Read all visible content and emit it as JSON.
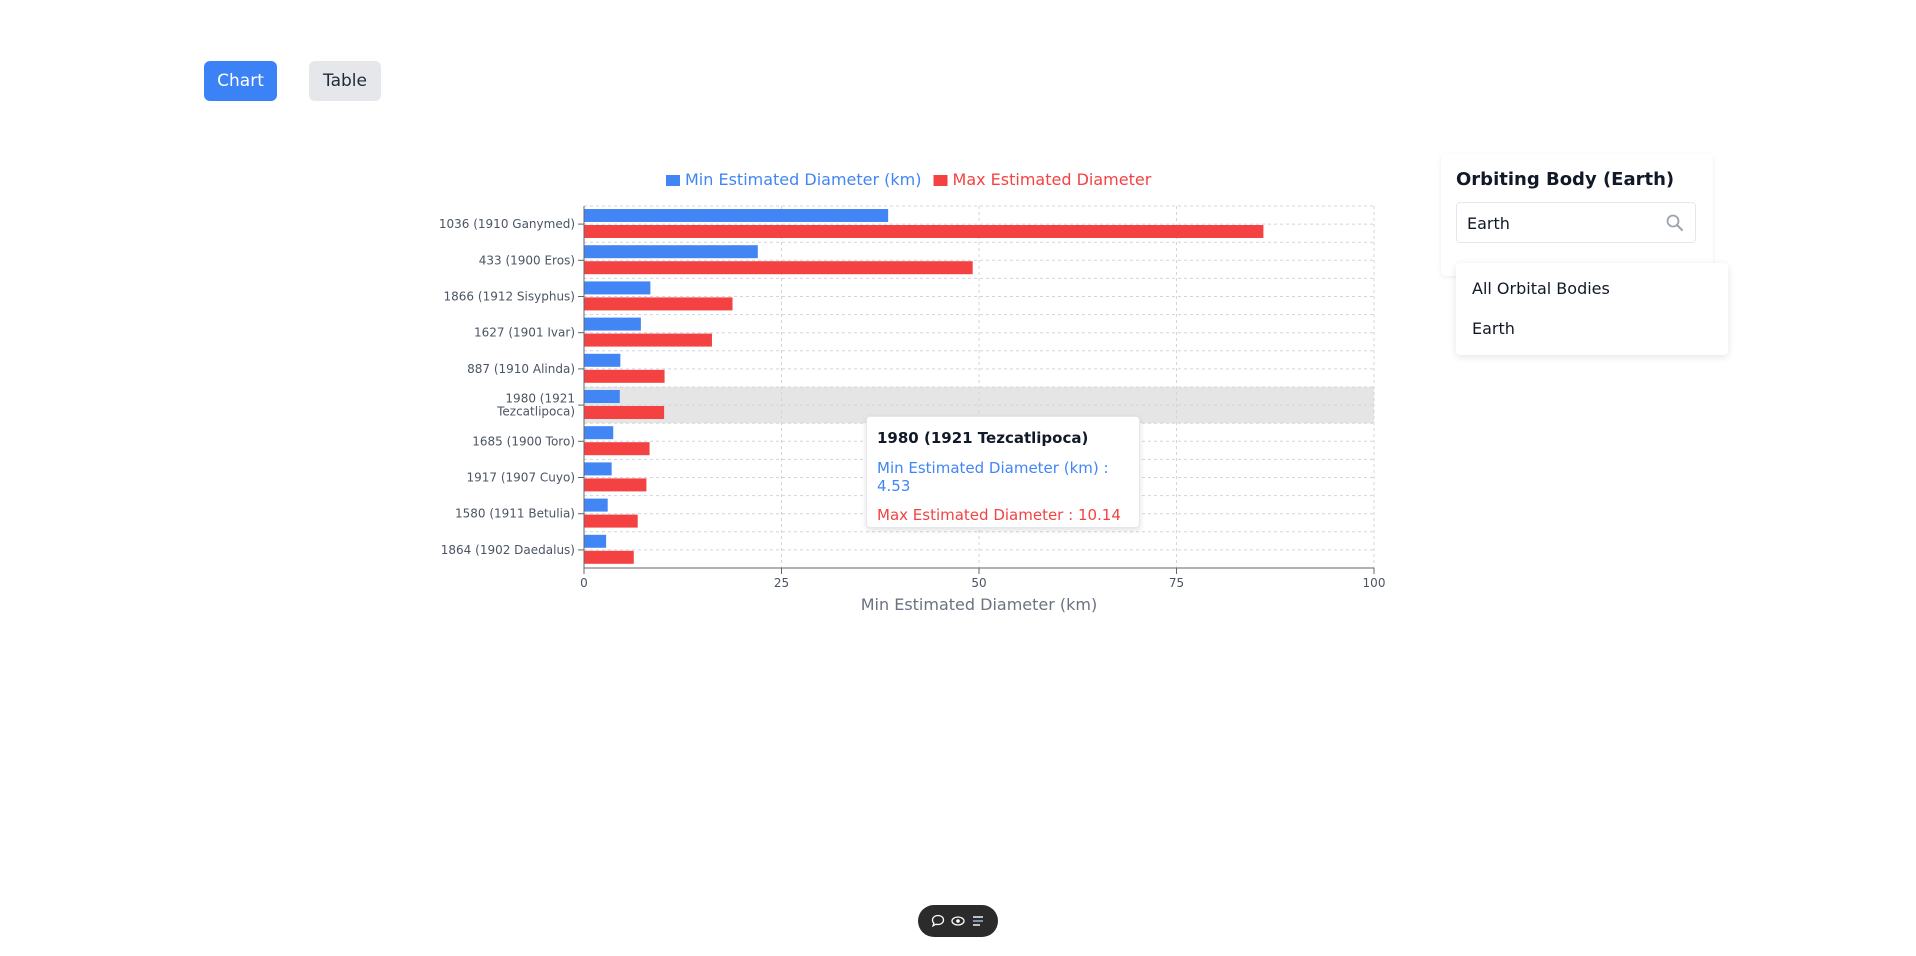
{
  "view_toggle": {
    "chart_label": "Chart",
    "table_label": "Table"
  },
  "chart_data": {
    "type": "bar",
    "orientation": "horizontal",
    "categories": [
      "1036 (1910 Ganymed)",
      "433 (1900 Eros)",
      "1866 (1912 Sisyphus)",
      "1627 (1901 Ivar)",
      "887 (1910 Alinda)",
      "1980 (1921 Tezcatlipoca)",
      "1685 (1900 Toro)",
      "1917 (1907 Cuyo)",
      "1580 (1911 Betulia)",
      "1864 (1902 Daedalus)"
    ],
    "category_label_lines": [
      [
        "1036 (1910 Ganymed)"
      ],
      [
        "433 (1900 Eros)"
      ],
      [
        "1866 (1912 Sisyphus)"
      ],
      [
        "1627 (1901 Ivar)"
      ],
      [
        "887 (1910 Alinda)"
      ],
      [
        "1980 (1921",
        "Tezcatlipoca)"
      ],
      [
        "1685 (1900 Toro)"
      ],
      [
        "1917 (1907 Cuyo)"
      ],
      [
        "1580 (1911 Betulia)"
      ],
      [
        "1864 (1902 Daedalus)"
      ]
    ],
    "series": [
      {
        "name": "Min Estimated Diameter (km)",
        "color": "#4285f4",
        "values": [
          38.5,
          22.0,
          8.4,
          7.2,
          4.6,
          4.53,
          3.7,
          3.5,
          3.0,
          2.8
        ]
      },
      {
        "name": "Max Estimated Diameter",
        "color": "#f44242",
        "values": [
          86.0,
          49.2,
          18.8,
          16.2,
          10.2,
          10.14,
          8.3,
          7.9,
          6.8,
          6.3
        ]
      }
    ],
    "x_ticks": [
      "0",
      "25",
      "50",
      "75",
      "100"
    ],
    "xlim": [
      0,
      100
    ],
    "xlabel": "Min Estimated Diameter (km)",
    "ylabel": "",
    "title": "",
    "grid": true,
    "legend_position": "top",
    "highlighted_category_index": 5
  },
  "tooltip": {
    "title": "1980 (1921 Tezcatlipoca)",
    "min_label": "Min Estimated Diameter (km) : 4.53",
    "max_label": "Max Estimated Diameter : 10.14"
  },
  "filter": {
    "title": "Orbiting Body (Earth)",
    "search_value": "Earth",
    "options": [
      "All Orbital Bodies",
      "Earth"
    ]
  },
  "toolbar": {
    "icons": [
      "chat-icon",
      "eye-icon",
      "list-icon"
    ]
  }
}
